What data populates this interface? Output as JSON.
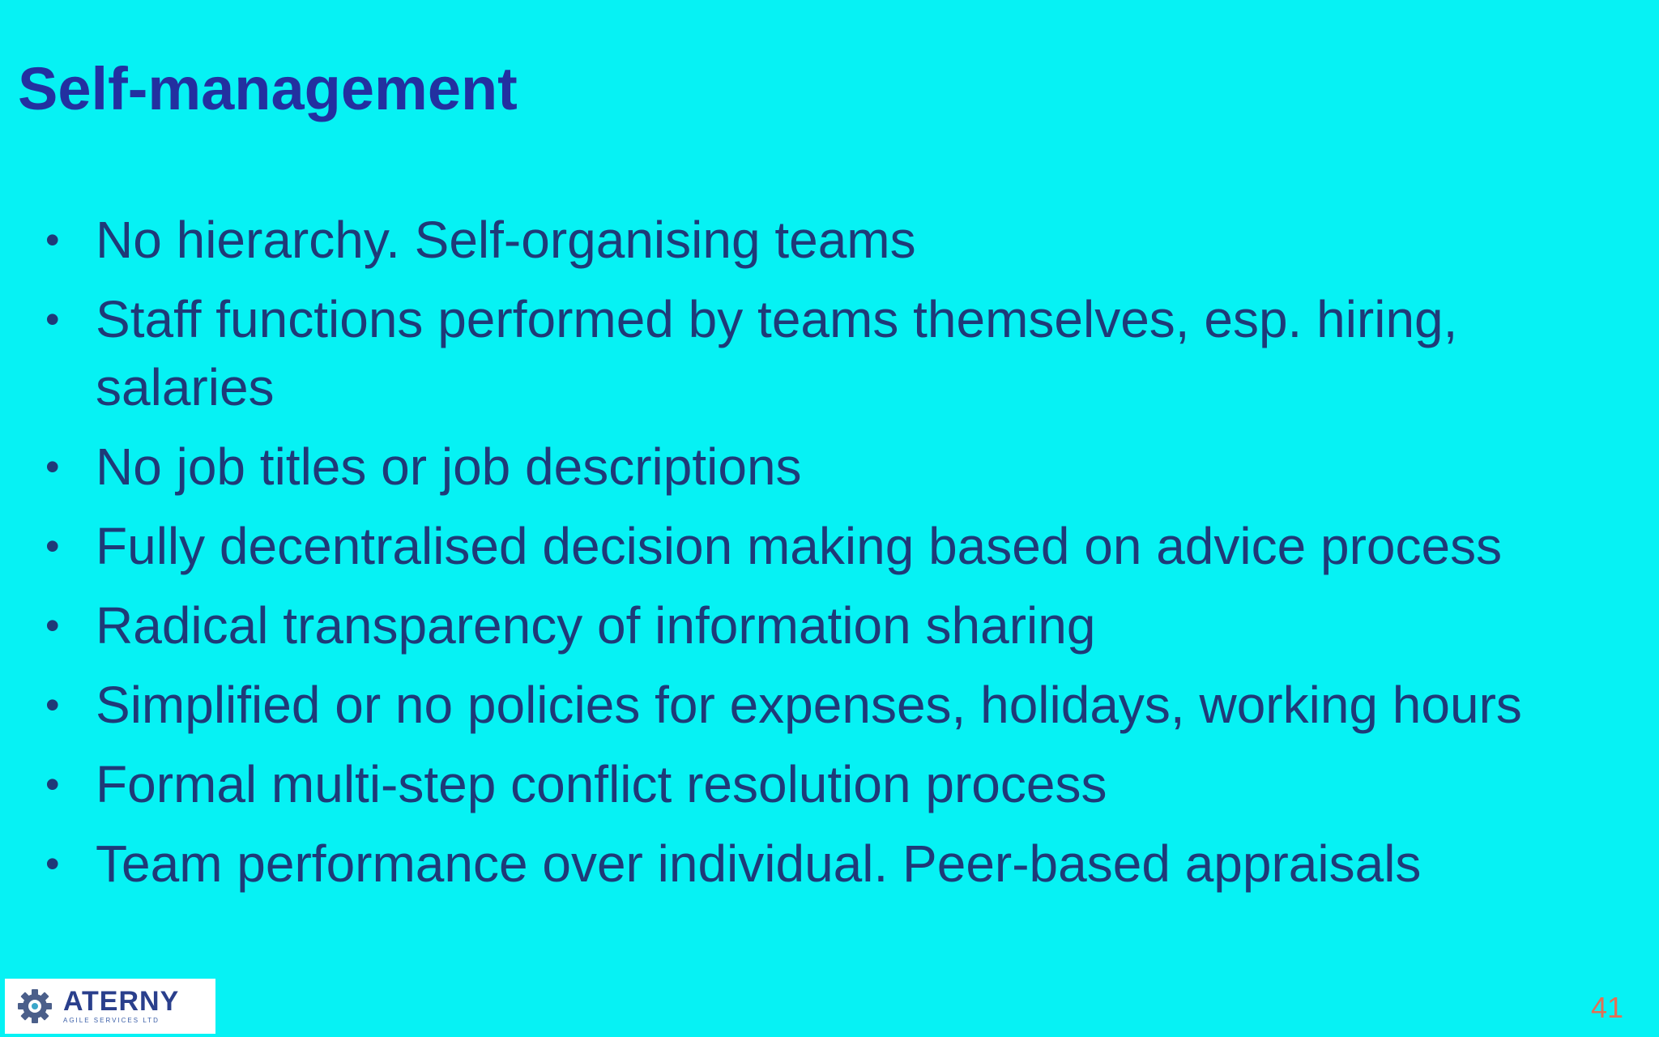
{
  "slide": {
    "title": "Self-management",
    "bullets": [
      "No hierarchy. Self-organising teams",
      "Staff functions performed by teams themselves, esp. hiring, salaries",
      "No job titles or job descriptions",
      "Fully decentralised decision making based on advice process",
      "Radical transparency of information sharing",
      "Simplified or no policies for expenses, holidays, working hours",
      "Formal multi-step conflict resolution process",
      "Team performance over individual. Peer-based appraisals"
    ],
    "bullet_symbol": "•",
    "page_number": "41"
  },
  "logo": {
    "name": "ATERNY",
    "tagline": "AGILE SERVICES LTD",
    "icon": "gear-icon"
  },
  "colors": {
    "background": "#06f2f4",
    "title": "#2330a0",
    "body_text": "#1f3a78",
    "page_number": "#e26f55"
  }
}
